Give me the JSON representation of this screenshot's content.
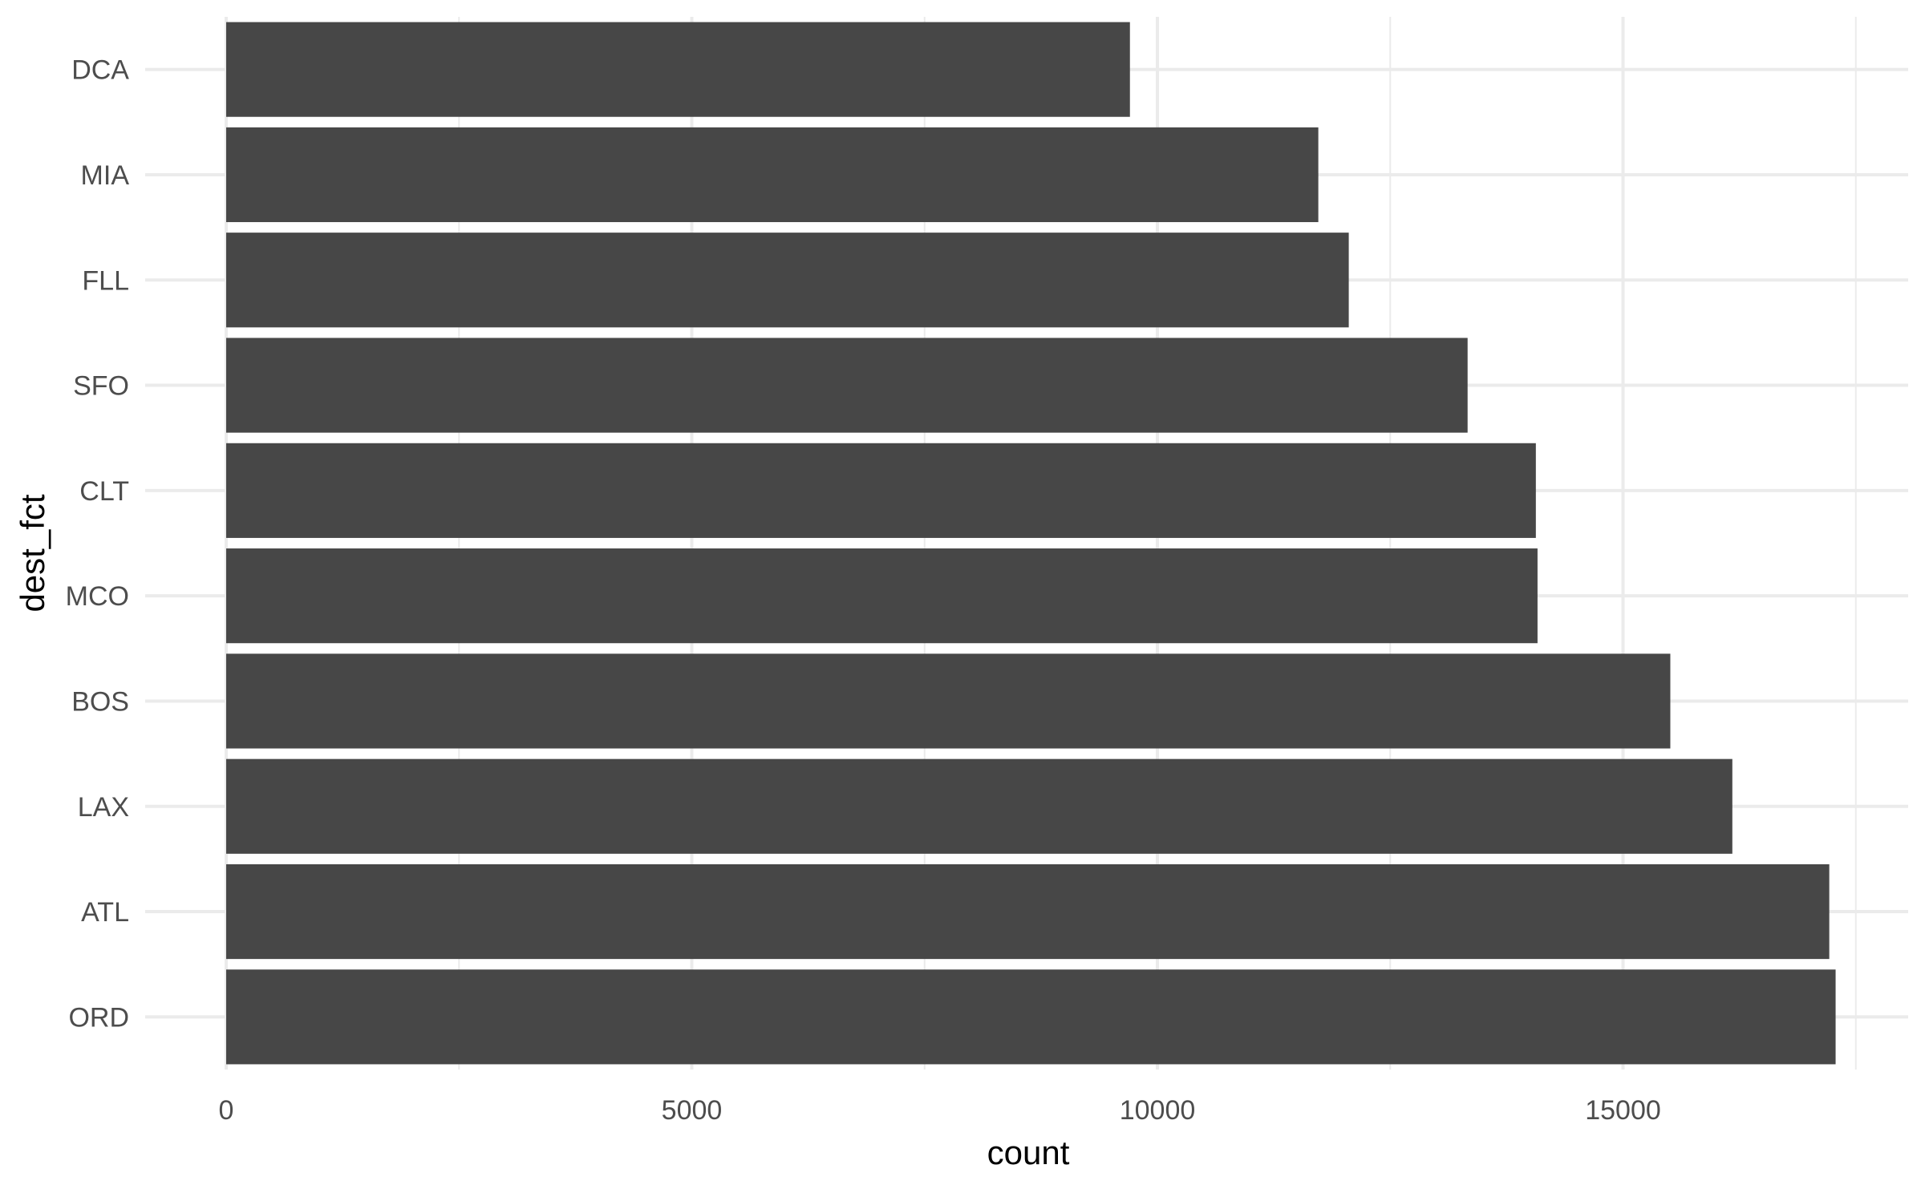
{
  "chart_data": {
    "type": "bar",
    "orientation": "horizontal",
    "categories": [
      "DCA",
      "MIA",
      "FLL",
      "SFO",
      "CLT",
      "MCO",
      "BOS",
      "LAX",
      "ATL",
      "ORD"
    ],
    "values": [
      9705,
      11728,
      12055,
      13331,
      14064,
      14082,
      15508,
      16174,
      17215,
      17283
    ],
    "xlabel": "count",
    "ylabel": "dest_fct",
    "xlim": [
      0,
      17283
    ],
    "x_ticks": [
      0,
      5000,
      10000,
      15000
    ],
    "x_tick_labels": [
      "0",
      "5000",
      "10000",
      "15000"
    ],
    "bar_color": "#474747",
    "grid_color": "#ebebeb",
    "grid": true,
    "legend": "none"
  }
}
